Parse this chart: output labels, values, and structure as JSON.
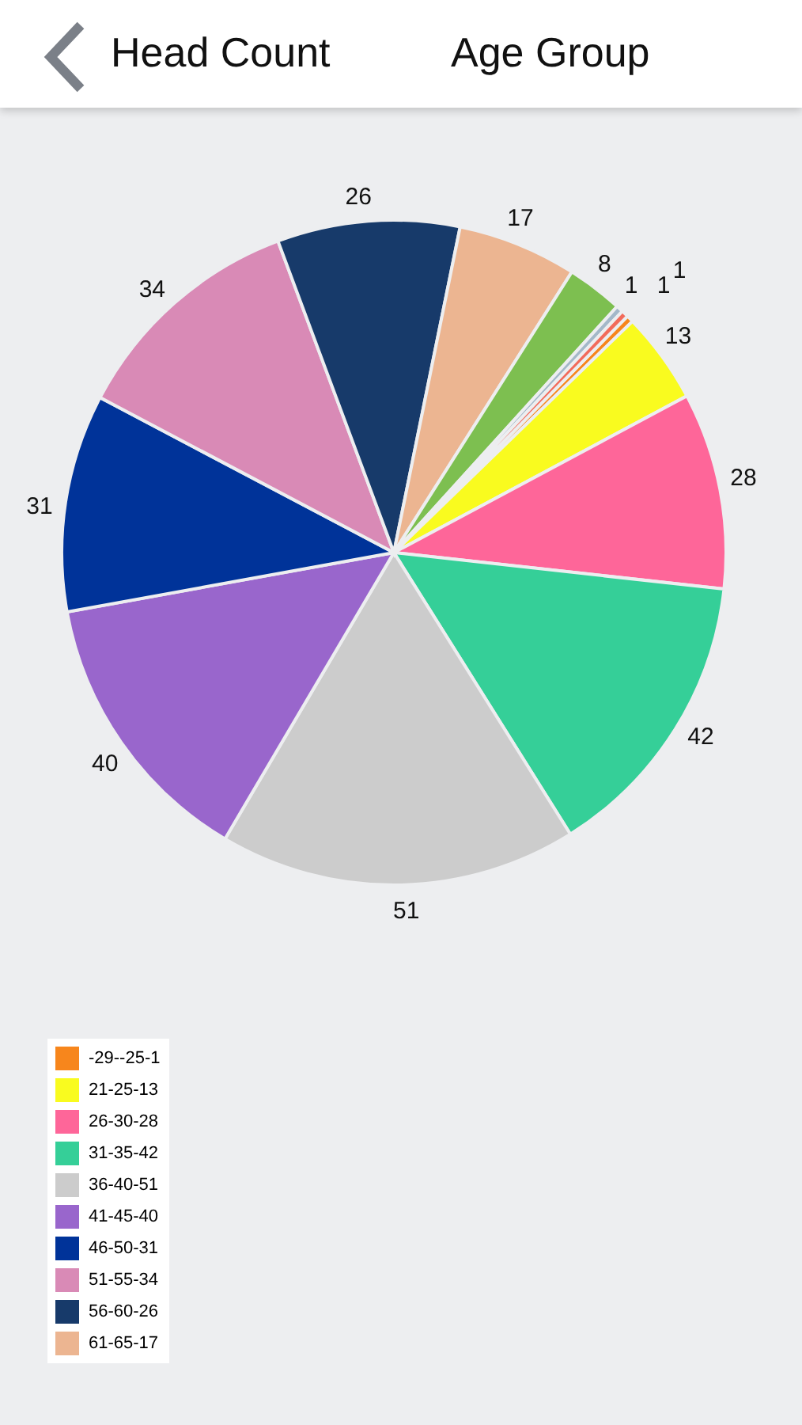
{
  "chart_data": {
    "type": "pie",
    "annotations": [
      "Head Count",
      "Age Group"
    ],
    "categories": [
      "-29--25-1",
      "21-25-13",
      "26-30-28",
      "31-35-42",
      "36-40-51",
      "41-45-40",
      "46-50-31",
      "51-55-34",
      "56-60-26",
      "61-65-17",
      null,
      null,
      null
    ],
    "values": [
      1,
      13,
      28,
      42,
      51,
      40,
      31,
      34,
      26,
      17,
      8,
      1,
      1
    ],
    "colors": [
      "#f7861c",
      "#f9fb1f",
      "#fe6699",
      "#35cf98",
      "#cccccc",
      "#9966cc",
      "#003399",
      "#d98ab6",
      "#173a6a",
      "#ecb591",
      "#7dbf50",
      "#a3b8c9",
      "#f26b5b"
    ],
    "data_labels": true,
    "legend": "bottom left"
  }
}
